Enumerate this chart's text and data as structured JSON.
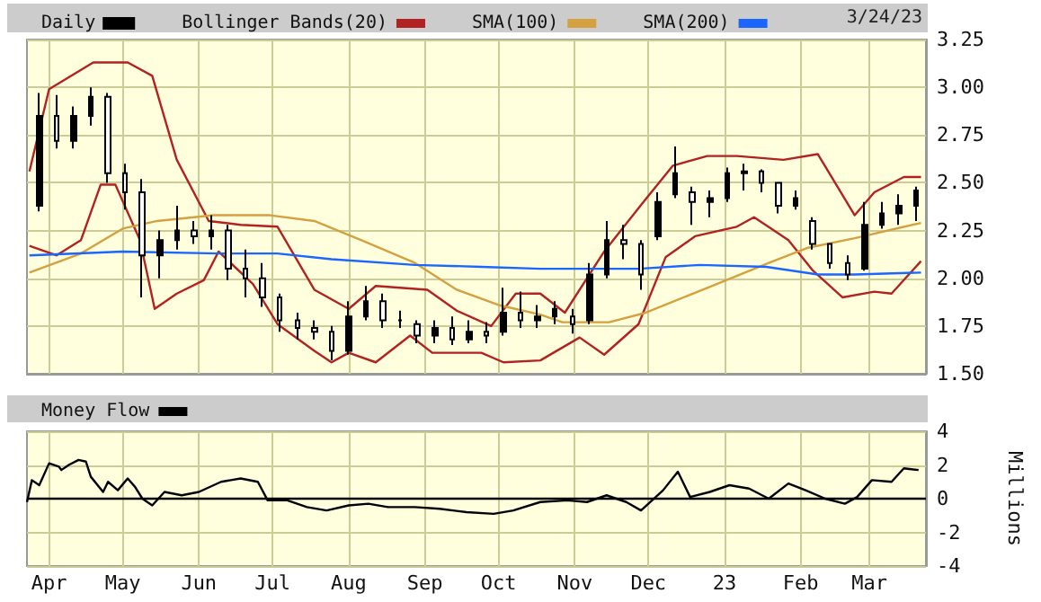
{
  "chart_data": [
    {
      "type": "candlestick",
      "legend": "top left",
      "grid": true,
      "marker": "none",
      "tick_labels": "y",
      "annotations": [
        "3/24/23"
      ],
      "xlim": [
        "2022-03-23",
        "2023-03-24"
      ],
      "xticks": [
        {
          "value": "2022-04-01",
          "label": null
        },
        {
          "value": "2022-05-01",
          "label": null
        },
        {
          "value": "2022-06-01",
          "label": null
        },
        {
          "value": "2022-07-01",
          "label": null
        },
        {
          "value": "2022-08-01",
          "label": null
        },
        {
          "value": "2022-09-01",
          "label": null
        },
        {
          "value": "2022-10-01",
          "label": null
        },
        {
          "value": "2022-11-01",
          "label": null
        },
        {
          "value": "2022-12-01",
          "label": null
        },
        {
          "value": "2023-01-01",
          "label": null
        },
        {
          "value": "2023-02-01",
          "label": null
        },
        {
          "value": "2023-03-01",
          "label": null
        }
      ],
      "ylim": [
        1.5,
        3.25
      ],
      "yticks": [
        {
          "value": 1.5,
          "label": "1.50"
        },
        1.75,
        {
          "value": 2,
          "label": "2.00"
        },
        2.25,
        {
          "value": 2.5,
          "label": "2.50"
        },
        2.75,
        {
          "value": 3,
          "label": "3.00"
        },
        3.25
      ],
      "series": [
        {
          "name": "Daily",
          "color": "#000000",
          "x": [
            "2022-03-28",
            "2022-04-04",
            "2022-04-11",
            "2022-04-18",
            "2022-04-25",
            "2022-05-02",
            "2022-05-09",
            "2022-05-16",
            "2022-05-23",
            "2022-05-30",
            "2022-06-06",
            "2022-06-13",
            "2022-06-20",
            "2022-06-27",
            "2022-07-04",
            "2022-07-11",
            "2022-07-18",
            "2022-07-25",
            "2022-08-01",
            "2022-08-08",
            "2022-08-15",
            "2022-08-22",
            "2022-08-29",
            "2022-09-05",
            "2022-09-12",
            "2022-09-19",
            "2022-09-26",
            "2022-10-03",
            "2022-10-10",
            "2022-10-17",
            "2022-10-24",
            "2022-10-31",
            "2022-11-07",
            "2022-11-14",
            "2022-11-21",
            "2022-11-28",
            "2022-12-05",
            "2022-12-12",
            "2022-12-19",
            "2022-12-26",
            "2023-01-02",
            "2023-01-09",
            "2023-01-16",
            "2023-01-23",
            "2023-01-30",
            "2023-02-06",
            "2023-02-13",
            "2023-02-20",
            "2023-02-27",
            "2023-03-06",
            "2023-03-13",
            "2023-03-20"
          ],
          "ohlc": [
            [
              2.38,
              2.97,
              2.35,
              2.85
            ],
            [
              2.85,
              2.96,
              2.68,
              2.72
            ],
            [
              2.72,
              2.9,
              2.68,
              2.85
            ],
            [
              2.85,
              3.0,
              2.8,
              2.95
            ],
            [
              2.95,
              2.97,
              2.5,
              2.55
            ],
            [
              2.55,
              2.6,
              2.36,
              2.45
            ],
            [
              2.45,
              2.52,
              1.9,
              2.12
            ],
            [
              2.12,
              2.25,
              2.0,
              2.2
            ],
            [
              2.2,
              2.38,
              2.15,
              2.25
            ],
            [
              2.25,
              2.3,
              2.18,
              2.22
            ],
            [
              2.22,
              2.33,
              2.15,
              2.25
            ],
            [
              2.25,
              2.28,
              1.99,
              2.05
            ],
            [
              2.05,
              2.15,
              1.9,
              2.0
            ],
            [
              2.0,
              2.08,
              1.85,
              1.9
            ],
            [
              1.9,
              1.92,
              1.72,
              1.78
            ],
            [
              1.78,
              1.82,
              1.68,
              1.74
            ],
            [
              1.74,
              1.78,
              1.68,
              1.72
            ],
            [
              1.72,
              1.75,
              1.57,
              1.62
            ],
            [
              1.62,
              1.88,
              1.6,
              1.8
            ],
            [
              1.8,
              1.96,
              1.78,
              1.88
            ],
            [
              1.88,
              1.92,
              1.74,
              1.78
            ],
            [
              1.78,
              1.83,
              1.74,
              1.78
            ],
            [
              1.76,
              1.78,
              1.66,
              1.7
            ],
            [
              1.7,
              1.78,
              1.66,
              1.74
            ],
            [
              1.74,
              1.8,
              1.65,
              1.68
            ],
            [
              1.68,
              1.78,
              1.66,
              1.72
            ],
            [
              1.72,
              1.77,
              1.66,
              1.7
            ],
            [
              1.72,
              1.95,
              1.7,
              1.82
            ],
            [
              1.82,
              1.93,
              1.74,
              1.78
            ],
            [
              1.78,
              1.86,
              1.74,
              1.8
            ],
            [
              1.8,
              1.88,
              1.76,
              1.84
            ],
            [
              1.8,
              1.84,
              1.71,
              1.76
            ],
            [
              1.78,
              2.08,
              1.76,
              2.02
            ],
            [
              2.02,
              2.3,
              2.0,
              2.2
            ],
            [
              2.2,
              2.28,
              2.1,
              2.18
            ],
            [
              2.18,
              2.2,
              1.94,
              2.02
            ],
            [
              2.22,
              2.45,
              2.2,
              2.4
            ],
            [
              2.44,
              2.69,
              2.42,
              2.55
            ],
            [
              2.45,
              2.48,
              2.28,
              2.4
            ],
            [
              2.4,
              2.46,
              2.32,
              2.42
            ],
            [
              2.42,
              2.58,
              2.4,
              2.55
            ],
            [
              2.55,
              2.6,
              2.46,
              2.56
            ],
            [
              2.56,
              2.57,
              2.45,
              2.5
            ],
            [
              2.5,
              2.5,
              2.34,
              2.38
            ],
            [
              2.38,
              2.46,
              2.36,
              2.42
            ],
            [
              2.3,
              2.32,
              2.15,
              2.18
            ],
            [
              2.18,
              2.18,
              2.05,
              2.08
            ],
            [
              2.08,
              2.12,
              1.99,
              2.02
            ],
            [
              2.05,
              2.4,
              2.04,
              2.28
            ],
            [
              2.28,
              2.4,
              2.26,
              2.34
            ],
            [
              2.34,
              2.44,
              2.28,
              2.38
            ],
            [
              2.38,
              2.48,
              2.3,
              2.46
            ]
          ]
        },
        {
          "name": "Bollinger Bands(20)",
          "type": "line",
          "color": "#b22222",
          "x": [
            "2022-03-24",
            "2022-04-01",
            "2022-04-19",
            "2022-05-03",
            "2022-05-13",
            "2022-05-23",
            "2022-06-05",
            "2022-06-18",
            "2022-07-03",
            "2022-07-18",
            "2022-08-01",
            "2022-08-12",
            "2022-09-02",
            "2022-09-14",
            "2022-09-28",
            "2022-10-08",
            "2022-10-18",
            "2022-10-28",
            "2022-11-13",
            "2022-11-29",
            "2022-12-11",
            "2022-12-25",
            "2023-01-06",
            "2023-01-25",
            "2023-02-08",
            "2023-02-23",
            "2023-03-03",
            "2023-03-15",
            "2023-03-22"
          ],
          "values": [
            2.56,
            2.99,
            3.13,
            3.13,
            3.06,
            2.62,
            2.3,
            2.28,
            2.27,
            1.94,
            1.84,
            1.96,
            1.94,
            1.83,
            1.75,
            1.92,
            1.92,
            1.82,
            2.14,
            2.4,
            2.59,
            2.64,
            2.64,
            2.62,
            2.65,
            2.33,
            2.45,
            2.53,
            2.53
          ]
        },
        {
          "type": "line",
          "color": "#b22222",
          "x": [
            "2022-03-24",
            "2022-04-04",
            "2022-04-14",
            "2022-04-22",
            "2022-04-28",
            "2022-05-08",
            "2022-05-14",
            "2022-05-23",
            "2022-06-03",
            "2022-06-09",
            "2022-06-23",
            "2022-07-03",
            "2022-07-18",
            "2022-07-25",
            "2022-08-01",
            "2022-08-12",
            "2022-08-26",
            "2022-09-04",
            "2022-09-24",
            "2022-10-03",
            "2022-10-18",
            "2022-11-03",
            "2022-11-13",
            "2022-11-27",
            "2022-12-08",
            "2022-12-20",
            "2023-01-06",
            "2023-01-13",
            "2023-01-27",
            "2023-02-06",
            "2023-02-18",
            "2023-03-03",
            "2023-03-10",
            "2023-03-22"
          ],
          "values": [
            2.17,
            2.12,
            2.2,
            2.49,
            2.49,
            2.2,
            1.84,
            1.92,
            1.99,
            2.14,
            1.97,
            1.76,
            1.62,
            1.56,
            1.61,
            1.56,
            1.7,
            1.61,
            1.61,
            1.56,
            1.57,
            1.69,
            1.6,
            1.76,
            2.11,
            2.22,
            2.27,
            2.32,
            2.2,
            2.04,
            1.9,
            1.93,
            1.92,
            2.09
          ]
        },
        {
          "name": "SMA(100)",
          "type": "line",
          "color": "#d4a040",
          "x": [
            "2022-03-24",
            "2022-04-14",
            "2022-05-01",
            "2022-05-15",
            "2022-06-07",
            "2022-06-30",
            "2022-07-18",
            "2022-08-06",
            "2022-08-28",
            "2022-09-14",
            "2022-10-01",
            "2022-10-18",
            "2022-10-27",
            "2022-11-15",
            "2022-11-30",
            "2022-12-25",
            "2023-01-19",
            "2023-02-04",
            "2023-02-23",
            "2023-03-22"
          ],
          "values": [
            2.03,
            2.13,
            2.26,
            2.3,
            2.33,
            2.33,
            2.3,
            2.2,
            2.08,
            1.94,
            1.86,
            1.81,
            1.77,
            1.77,
            1.82,
            1.95,
            2.08,
            2.16,
            2.21,
            2.29
          ]
        },
        {
          "name": "SMA(200)",
          "type": "line",
          "color": "#1a66ff",
          "x": [
            "2022-03-24",
            "2022-05-01",
            "2022-06-09",
            "2022-07-03",
            "2022-07-25",
            "2022-08-28",
            "2022-09-24",
            "2022-10-18",
            "2022-11-03",
            "2022-11-27",
            "2022-12-22",
            "2023-01-18",
            "2023-02-08",
            "2023-02-23",
            "2023-03-22"
          ],
          "values": [
            2.12,
            2.14,
            2.13,
            2.13,
            2.1,
            2.07,
            2.06,
            2.05,
            2.05,
            2.05,
            2.07,
            2.06,
            2.02,
            2.02,
            2.03
          ]
        }
      ]
    },
    {
      "type": "line",
      "legend": "top left",
      "grid": true,
      "marker": "none",
      "ylabel": "Millions",
      "xlim": [
        "2022-03-23",
        "2023-03-24"
      ],
      "xticks": [
        {
          "value": "2022-04-01",
          "label": "Apr"
        },
        {
          "value": "2022-05-01",
          "label": "May"
        },
        {
          "value": "2022-06-01",
          "label": "Jun"
        },
        {
          "value": "2022-07-01",
          "label": "Jul"
        },
        {
          "value": "2022-08-01",
          "label": "Aug"
        },
        {
          "value": "2022-09-01",
          "label": "Sep"
        },
        {
          "value": "2022-10-01",
          "label": "Oct"
        },
        {
          "value": "2022-11-01",
          "label": "Nov"
        },
        {
          "value": "2022-12-01",
          "label": "Dec"
        },
        {
          "value": "2023-01-01",
          "label": "23"
        },
        {
          "value": "2023-02-01",
          "label": "Feb"
        },
        {
          "value": "2023-03-01",
          "label": "Mar"
        }
      ],
      "ylim": [
        -4,
        4
      ],
      "yticks": [
        -4,
        -2,
        0,
        2,
        4
      ],
      "ref_lines": [
        {
          "axis": "y",
          "value": 0,
          "color": "#000000"
        }
      ],
      "series": [
        {
          "name": "Money Flow",
          "color": "#000000",
          "x": [
            "2022-03-23",
            "2022-03-25",
            "2022-03-28",
            "2022-04-01",
            "2022-04-05",
            "2022-04-06",
            "2022-04-09",
            "2022-04-13",
            "2022-04-16",
            "2022-04-18",
            "2022-04-23",
            "2022-04-25",
            "2022-04-29",
            "2022-05-03",
            "2022-05-06",
            "2022-05-09",
            "2022-05-13",
            "2022-05-18",
            "2022-05-25",
            "2022-06-01",
            "2022-06-10",
            "2022-06-18",
            "2022-06-25",
            "2022-06-29",
            "2022-07-07",
            "2022-07-15",
            "2022-07-23",
            "2022-08-01",
            "2022-08-09",
            "2022-08-17",
            "2022-08-28",
            "2022-09-07",
            "2022-09-18",
            "2022-09-29",
            "2022-10-07",
            "2022-10-18",
            "2022-10-29",
            "2022-11-06",
            "2022-11-14",
            "2022-11-22",
            "2022-11-28",
            "2022-12-01",
            "2022-12-07",
            "2022-12-13",
            "2022-12-18",
            "2022-12-26",
            "2023-01-03",
            "2023-01-11",
            "2023-01-19",
            "2023-01-27",
            "2023-02-03",
            "2023-02-11",
            "2023-02-19",
            "2023-02-24",
            "2023-03-02",
            "2023-03-10",
            "2023-03-15",
            "2023-03-21"
          ],
          "values": [
            -0.2,
            1.1,
            0.8,
            2.1,
            1.9,
            1.7,
            2.0,
            2.3,
            2.2,
            1.3,
            0.4,
            1.0,
            0.5,
            1.2,
            0.7,
            0.0,
            -0.4,
            0.4,
            0.2,
            0.4,
            1.0,
            1.2,
            1.0,
            -0.1,
            -0.1,
            -0.5,
            -0.7,
            -0.4,
            -0.3,
            -0.5,
            -0.5,
            -0.6,
            -0.8,
            -0.9,
            -0.7,
            -0.2,
            -0.1,
            -0.2,
            0.2,
            -0.2,
            -0.7,
            -0.3,
            0.5,
            1.6,
            0.1,
            0.4,
            0.8,
            0.6,
            0.0,
            0.9,
            0.5,
            0.0,
            -0.3,
            0.1,
            1.1,
            1.0,
            1.8,
            1.7
          ]
        }
      ]
    }
  ]
}
